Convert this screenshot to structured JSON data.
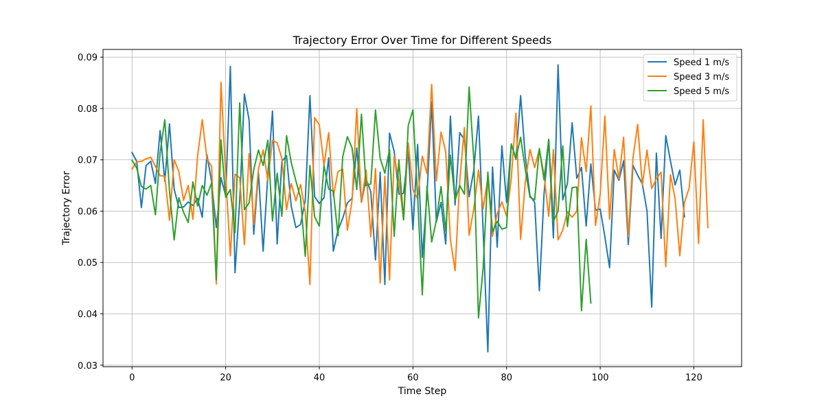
{
  "chart_data": {
    "type": "line",
    "title": "Trajectory Error Over Time for Different Speeds",
    "xlabel": "Time Step",
    "ylabel": "Trajectory Error",
    "xlim": [
      -6.2,
      130.2
    ],
    "ylim": [
      0.0297,
      0.0915
    ],
    "x_ticks": [
      0,
      20,
      40,
      60,
      80,
      100,
      120
    ],
    "y_ticks": [
      0.03,
      0.04,
      0.05,
      0.06,
      0.07,
      0.08,
      0.09
    ],
    "grid": true,
    "legend_position": "top-right",
    "series": [
      {
        "name": "Speed 1 m/s",
        "color": "#1f77b4",
        "x_start": 0,
        "values": [
          0.0714,
          0.0697,
          0.0607,
          0.0689,
          0.0697,
          0.0654,
          0.0757,
          0.0658,
          0.077,
          0.0643,
          0.0607,
          0.0608,
          0.0618,
          0.0611,
          0.0625,
          0.0588,
          0.071,
          0.0657,
          0.0568,
          0.0665,
          0.063,
          0.0882,
          0.048,
          0.062,
          0.0828,
          0.0778,
          0.0555,
          0.0676,
          0.0522,
          0.0669,
          0.0795,
          0.0536,
          0.0697,
          0.0708,
          0.061,
          0.0568,
          0.0574,
          0.0621,
          0.0825,
          0.0628,
          0.0615,
          0.0626,
          0.0704,
          0.0522,
          0.0563,
          0.0586,
          0.0616,
          0.0625,
          0.0723,
          0.0617,
          0.0663,
          0.0638,
          0.0505,
          0.0676,
          0.0457,
          0.0752,
          0.0716,
          0.0633,
          0.0635,
          0.0716,
          0.0564,
          0.073,
          0.051,
          0.0631,
          0.0813,
          0.0579,
          0.0617,
          0.0536,
          0.0785,
          0.0612,
          0.0753,
          0.0739,
          0.0628,
          0.068,
          0.0785,
          0.056,
          0.0326,
          0.0686,
          0.053,
          0.0727,
          0.0617,
          0.073,
          0.0701,
          0.0825,
          0.0706,
          0.063,
          0.0617,
          0.0445,
          0.0633,
          0.0739,
          0.0548,
          0.0885,
          0.0622,
          0.0654,
          0.0772,
          0.0664,
          0.0685,
          0.0571,
          0.0692,
          0.0602,
          0.0604,
          0.055,
          0.049,
          0.068,
          0.066,
          0.0698,
          0.0535,
          0.0689,
          0.067,
          0.0653,
          0.06,
          0.0413,
          0.0713,
          0.0547,
          0.0747,
          0.0698,
          0.0651,
          0.068,
          0.0589
        ]
      },
      {
        "name": "Speed 3 m/s",
        "color": "#ff7f0e",
        "x_start": 0,
        "values": [
          0.0682,
          0.0696,
          0.0697,
          0.0702,
          0.0705,
          0.0687,
          0.0669,
          0.0668,
          0.0582,
          0.07,
          0.0677,
          0.0621,
          0.065,
          0.0584,
          0.0707,
          0.0778,
          0.0702,
          0.0687,
          0.0458,
          0.0851,
          0.0671,
          0.0513,
          0.0672,
          0.0665,
          0.0535,
          0.0712,
          0.0574,
          0.0682,
          0.0719,
          0.066,
          0.0738,
          0.0733,
          0.0703,
          0.0603,
          0.0654,
          0.062,
          0.0652,
          0.0598,
          0.0457,
          0.0782,
          0.0768,
          0.0689,
          0.0753,
          0.0629,
          0.0677,
          0.0682,
          0.0563,
          0.0621,
          0.08,
          0.0617,
          0.068,
          0.055,
          0.0683,
          0.046,
          0.0668,
          0.0466,
          0.0707,
          0.066,
          0.0583,
          0.0733,
          0.0642,
          0.0624,
          0.0707,
          0.0673,
          0.0847,
          0.0659,
          0.0754,
          0.0716,
          0.0545,
          0.0484,
          0.066,
          0.0763,
          0.0553,
          0.0605,
          0.068,
          0.0605,
          0.0665,
          0.0551,
          0.0595,
          0.0618,
          0.059,
          0.0663,
          0.0791,
          0.0545,
          0.0657,
          0.072,
          0.0685,
          0.072,
          0.0671,
          0.059,
          0.072,
          0.0544,
          0.0563,
          0.0599,
          0.0588,
          0.06,
          0.0743,
          0.0677,
          0.0805,
          0.0572,
          0.0633,
          0.0785,
          0.0584,
          0.072,
          0.0663,
          0.0744,
          0.055,
          0.0704,
          0.0769,
          0.065,
          0.0719,
          0.0644,
          0.0663,
          0.0676,
          0.0492,
          0.0671,
          0.0624,
          0.0513,
          0.0617,
          0.0645,
          0.0735,
          0.0537,
          0.0778,
          0.0568
        ]
      },
      {
        "name": "Speed 5 m/s",
        "color": "#2ca02c",
        "x_start": 0,
        "values": [
          0.0699,
          0.0684,
          0.0648,
          0.0643,
          0.065,
          0.0593,
          0.0714,
          0.0778,
          0.064,
          0.0544,
          0.0626,
          0.0598,
          0.0578,
          0.0657,
          0.061,
          0.065,
          0.0631,
          0.0655,
          0.0466,
          0.0739,
          0.0627,
          0.0642,
          0.0558,
          0.0811,
          0.0603,
          0.0616,
          0.0681,
          0.0719,
          0.0689,
          0.0738,
          0.0581,
          0.0674,
          0.059,
          0.0747,
          0.0695,
          0.0659,
          0.0626,
          0.0512,
          0.0689,
          0.0589,
          0.0571,
          0.0689,
          0.0643,
          0.0639,
          0.0552,
          0.0706,
          0.0745,
          0.0723,
          0.0642,
          0.0789,
          0.065,
          0.0653,
          0.0797,
          0.0703,
          0.0674,
          0.072,
          0.0551,
          0.07,
          0.0583,
          0.0767,
          0.0797,
          0.0628,
          0.0437,
          0.0649,
          0.054,
          0.0582,
          0.0648,
          0.0561,
          0.0709,
          0.0621,
          0.065,
          0.0633,
          0.0842,
          0.07,
          0.0392,
          0.049,
          0.0676,
          0.056,
          0.058,
          0.0565,
          0.0568,
          0.0731,
          0.0703,
          0.0744,
          0.0681,
          0.0627,
          0.0622,
          0.0722,
          0.0661,
          0.074,
          0.058,
          0.06,
          0.0727,
          0.057,
          0.0646,
          0.0647,
          0.0406,
          0.0545,
          0.0421
        ]
      }
    ]
  }
}
